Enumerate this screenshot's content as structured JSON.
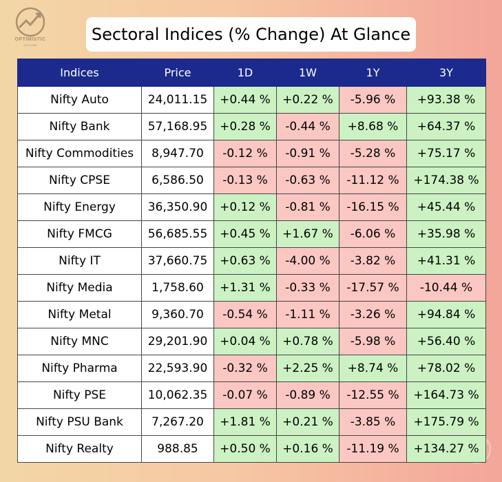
{
  "logo": {
    "name": "OPTIMISTIC",
    "tagline": "OUTLOOK"
  },
  "title": "Sectoral Indices (% Change) At Glance",
  "table": {
    "headers": [
      "Indices",
      "Price",
      "1D",
      "1W",
      "1Y",
      "3Y"
    ],
    "rows": [
      [
        "Nifty Auto",
        "24,011.15",
        "+0.44 %",
        "+0.22 %",
        "-5.96 %",
        "+93.38 %"
      ],
      [
        "Nifty Bank",
        "57,168.95",
        "+0.28 %",
        "-0.44 %",
        "+8.68 %",
        "+64.37 %"
      ],
      [
        "Nifty Commodities",
        "8,947.70",
        "-0.12 %",
        "-0.91 %",
        "-5.28 %",
        "+75.17 %"
      ],
      [
        "Nifty CPSE",
        "6,586.50",
        "-0.13 %",
        "-0.63 %",
        "-11.12 %",
        "+174.38 %"
      ],
      [
        "Nifty Energy",
        "36,350.90",
        "+0.12 %",
        "-0.81 %",
        "-16.15 %",
        "+45.44 %"
      ],
      [
        "Nifty FMCG",
        "56,685.55",
        "+0.45 %",
        "+1.67 %",
        "-6.06 %",
        "+35.98 %"
      ],
      [
        "Nifty IT",
        "37,660.75",
        "+0.63 %",
        "-4.00 %",
        "-3.82 %",
        "+41.31 %"
      ],
      [
        "Nifty Media",
        "1,758.60",
        "+1.31 %",
        "-0.33 %",
        "-17.57 %",
        "-10.44 %"
      ],
      [
        "Nifty Metal",
        "9,360.70",
        "-0.54 %",
        "-1.11 %",
        "-3.26 %",
        "+94.84 %"
      ],
      [
        "Nifty MNC",
        "29,201.90",
        "+0.04 %",
        "+0.78 %",
        "-5.98 %",
        "+56.40 %"
      ],
      [
        "Nifty Pharma",
        "22,593.90",
        "-0.32 %",
        "+2.25 %",
        "+8.74 %",
        "+78.02 %"
      ],
      [
        "Nifty PSE",
        "10,062.35",
        "-0.07 %",
        "-0.89 %",
        "-12.55 %",
        "+164.73 %"
      ],
      [
        "Nifty PSU Bank",
        "7,267.20",
        "+1.81 %",
        "+0.21 %",
        "-3.85 %",
        "+175.79 %"
      ],
      [
        "Nifty Realty",
        "988.85",
        "+0.50 %",
        "+0.16 %",
        "-11.19 %",
        "+134.27 %"
      ]
    ]
  },
  "colors": {
    "header_bg": "#1b2a8c",
    "positive_bg": "#ccf2c4",
    "negative_bg": "#fac7c3"
  }
}
